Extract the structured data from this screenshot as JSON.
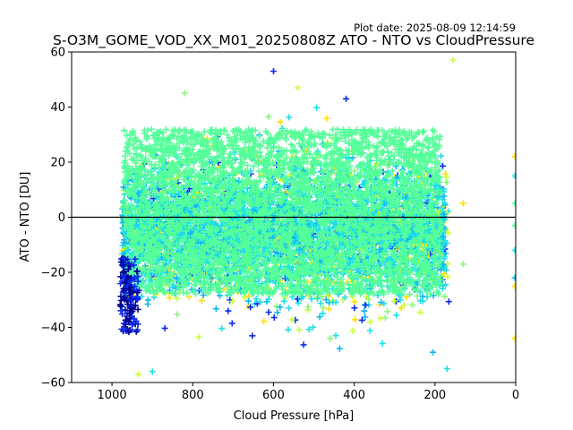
{
  "header": {
    "plot_date": "Plot date: 2025-08-09 12:14:59",
    "title": "S-O3M_GOME_VOD_XX_M01_20250808Z ATO - NTO vs CloudPressure"
  },
  "chart_data": {
    "type": "scatter",
    "title": "S-O3M_GOME_VOD_XX_M01_20250808Z ATO - NTO vs CloudPressure",
    "xlabel": "Cloud Pressure [hPa]",
    "ylabel": "ATO - NTO [DU]",
    "xlim": [
      1100,
      0
    ],
    "ylim": [
      -60,
      60
    ],
    "x_ticks": [
      1000,
      800,
      600,
      400,
      200,
      0
    ],
    "y_ticks": [
      -60,
      -40,
      -20,
      0,
      20,
      40,
      60
    ],
    "x_tick_labels": [
      "1000",
      "800",
      "600",
      "400",
      "200",
      "0"
    ],
    "y_tick_labels": [
      "−60",
      "−40",
      "−20",
      "0",
      "20",
      "40",
      "60"
    ],
    "marker": "+",
    "grid": false,
    "reference_line": {
      "y": 0,
      "color": "#000000"
    },
    "colors": {
      "core": "#55ff99",
      "cyan": "#1ee0e6",
      "sky": "#10b8f2",
      "yellow": "#ffe000",
      "lime": "#c8ff3a",
      "lightgreen": "#8cf57a",
      "blue": "#0a2af0",
      "navy": "#000090"
    },
    "envelope": {
      "x_min": 975,
      "x_max": 165,
      "core_y_range": [
        -28,
        32
      ],
      "outer_y_range": [
        -58,
        50
      ]
    },
    "notable_points": [
      {
        "x": 600,
        "y": 53,
        "color": "blue"
      },
      {
        "x": 155,
        "y": 57,
        "color": "lime"
      },
      {
        "x": 820,
        "y": 45,
        "color": "lightgreen"
      },
      {
        "x": 420,
        "y": 43,
        "color": "blue"
      },
      {
        "x": 540,
        "y": 47,
        "color": "lime"
      },
      {
        "x": 130,
        "y": 5,
        "color": "yellow"
      },
      {
        "x": 130,
        "y": -17,
        "color": "lightgreen"
      },
      {
        "x": 185,
        "y": -19,
        "color": "sky"
      },
      {
        "x": 205,
        "y": -49,
        "color": "sky"
      },
      {
        "x": 170,
        "y": -55,
        "color": "cyan"
      },
      {
        "x": 935,
        "y": -57,
        "color": "lime"
      },
      {
        "x": 900,
        "y": -56,
        "color": "cyan"
      },
      {
        "x": 2,
        "y": 22,
        "color": "yellow"
      },
      {
        "x": 2,
        "y": 15,
        "color": "cyan"
      },
      {
        "x": 2,
        "y": 5,
        "color": "core"
      },
      {
        "x": 2,
        "y": -3,
        "color": "core"
      },
      {
        "x": 2,
        "y": -12,
        "color": "cyan"
      },
      {
        "x": 2,
        "y": -22,
        "color": "sky"
      },
      {
        "x": 2,
        "y": -25,
        "color": "yellow"
      },
      {
        "x": 2,
        "y": -44,
        "color": "yellow"
      }
    ]
  }
}
